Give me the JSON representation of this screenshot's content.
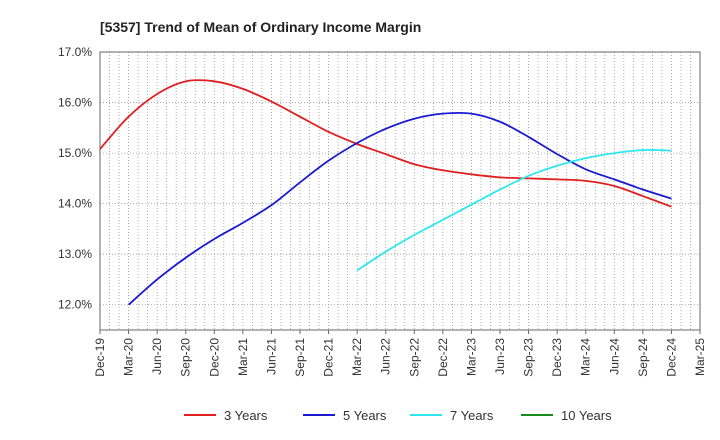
{
  "chart_data": {
    "type": "line",
    "title": "[5357]  Trend of Mean of Ordinary Income Margin",
    "xlabel": "",
    "ylabel": "",
    "x": [
      "Dec-19",
      "Mar-20",
      "Jun-20",
      "Sep-20",
      "Dec-20",
      "Mar-21",
      "Jun-21",
      "Sep-21",
      "Dec-21",
      "Mar-22",
      "Jun-22",
      "Sep-22",
      "Dec-22",
      "Mar-23",
      "Jun-23",
      "Sep-23",
      "Dec-23",
      "Mar-24",
      "Jun-24",
      "Sep-24",
      "Dec-24",
      "Mar-25"
    ],
    "ylim": [
      11.5,
      17.0
    ],
    "yticks": [
      "12.0%",
      "13.0%",
      "14.0%",
      "15.0%",
      "16.0%",
      "17.0%"
    ],
    "ytick_values": [
      12.0,
      13.0,
      14.0,
      15.0,
      16.0,
      17.0
    ],
    "grid": true,
    "legend_position": "bottom",
    "series": [
      {
        "name": "3 Years",
        "color": "#e02020",
        "values": [
          15.08,
          15.72,
          16.17,
          16.42,
          16.42,
          16.27,
          16.02,
          15.72,
          15.42,
          15.18,
          14.98,
          14.78,
          14.66,
          14.58,
          14.52,
          14.5,
          14.48,
          14.45,
          14.35,
          14.15,
          13.94,
          null
        ]
      },
      {
        "name": "5 Years",
        "color": "#1a1ad0",
        "values": [
          null,
          12.0,
          12.5,
          12.93,
          13.3,
          13.62,
          13.97,
          14.42,
          14.85,
          15.2,
          15.48,
          15.68,
          15.78,
          15.78,
          15.62,
          15.32,
          14.98,
          14.68,
          14.48,
          14.28,
          14.1,
          null
        ]
      },
      {
        "name": "7 Years",
        "color": "#2ee8ee",
        "values": [
          null,
          null,
          null,
          null,
          null,
          null,
          null,
          null,
          null,
          12.68,
          13.05,
          13.38,
          13.68,
          13.98,
          14.28,
          14.55,
          14.75,
          14.9,
          15.0,
          15.06,
          15.05,
          null
        ]
      },
      {
        "name": "10 Years",
        "color": "#1a8a1a",
        "values": [
          null,
          null,
          null,
          null,
          null,
          null,
          null,
          null,
          null,
          null,
          null,
          null,
          null,
          null,
          null,
          null,
          null,
          null,
          null,
          null,
          null,
          null
        ]
      }
    ]
  }
}
